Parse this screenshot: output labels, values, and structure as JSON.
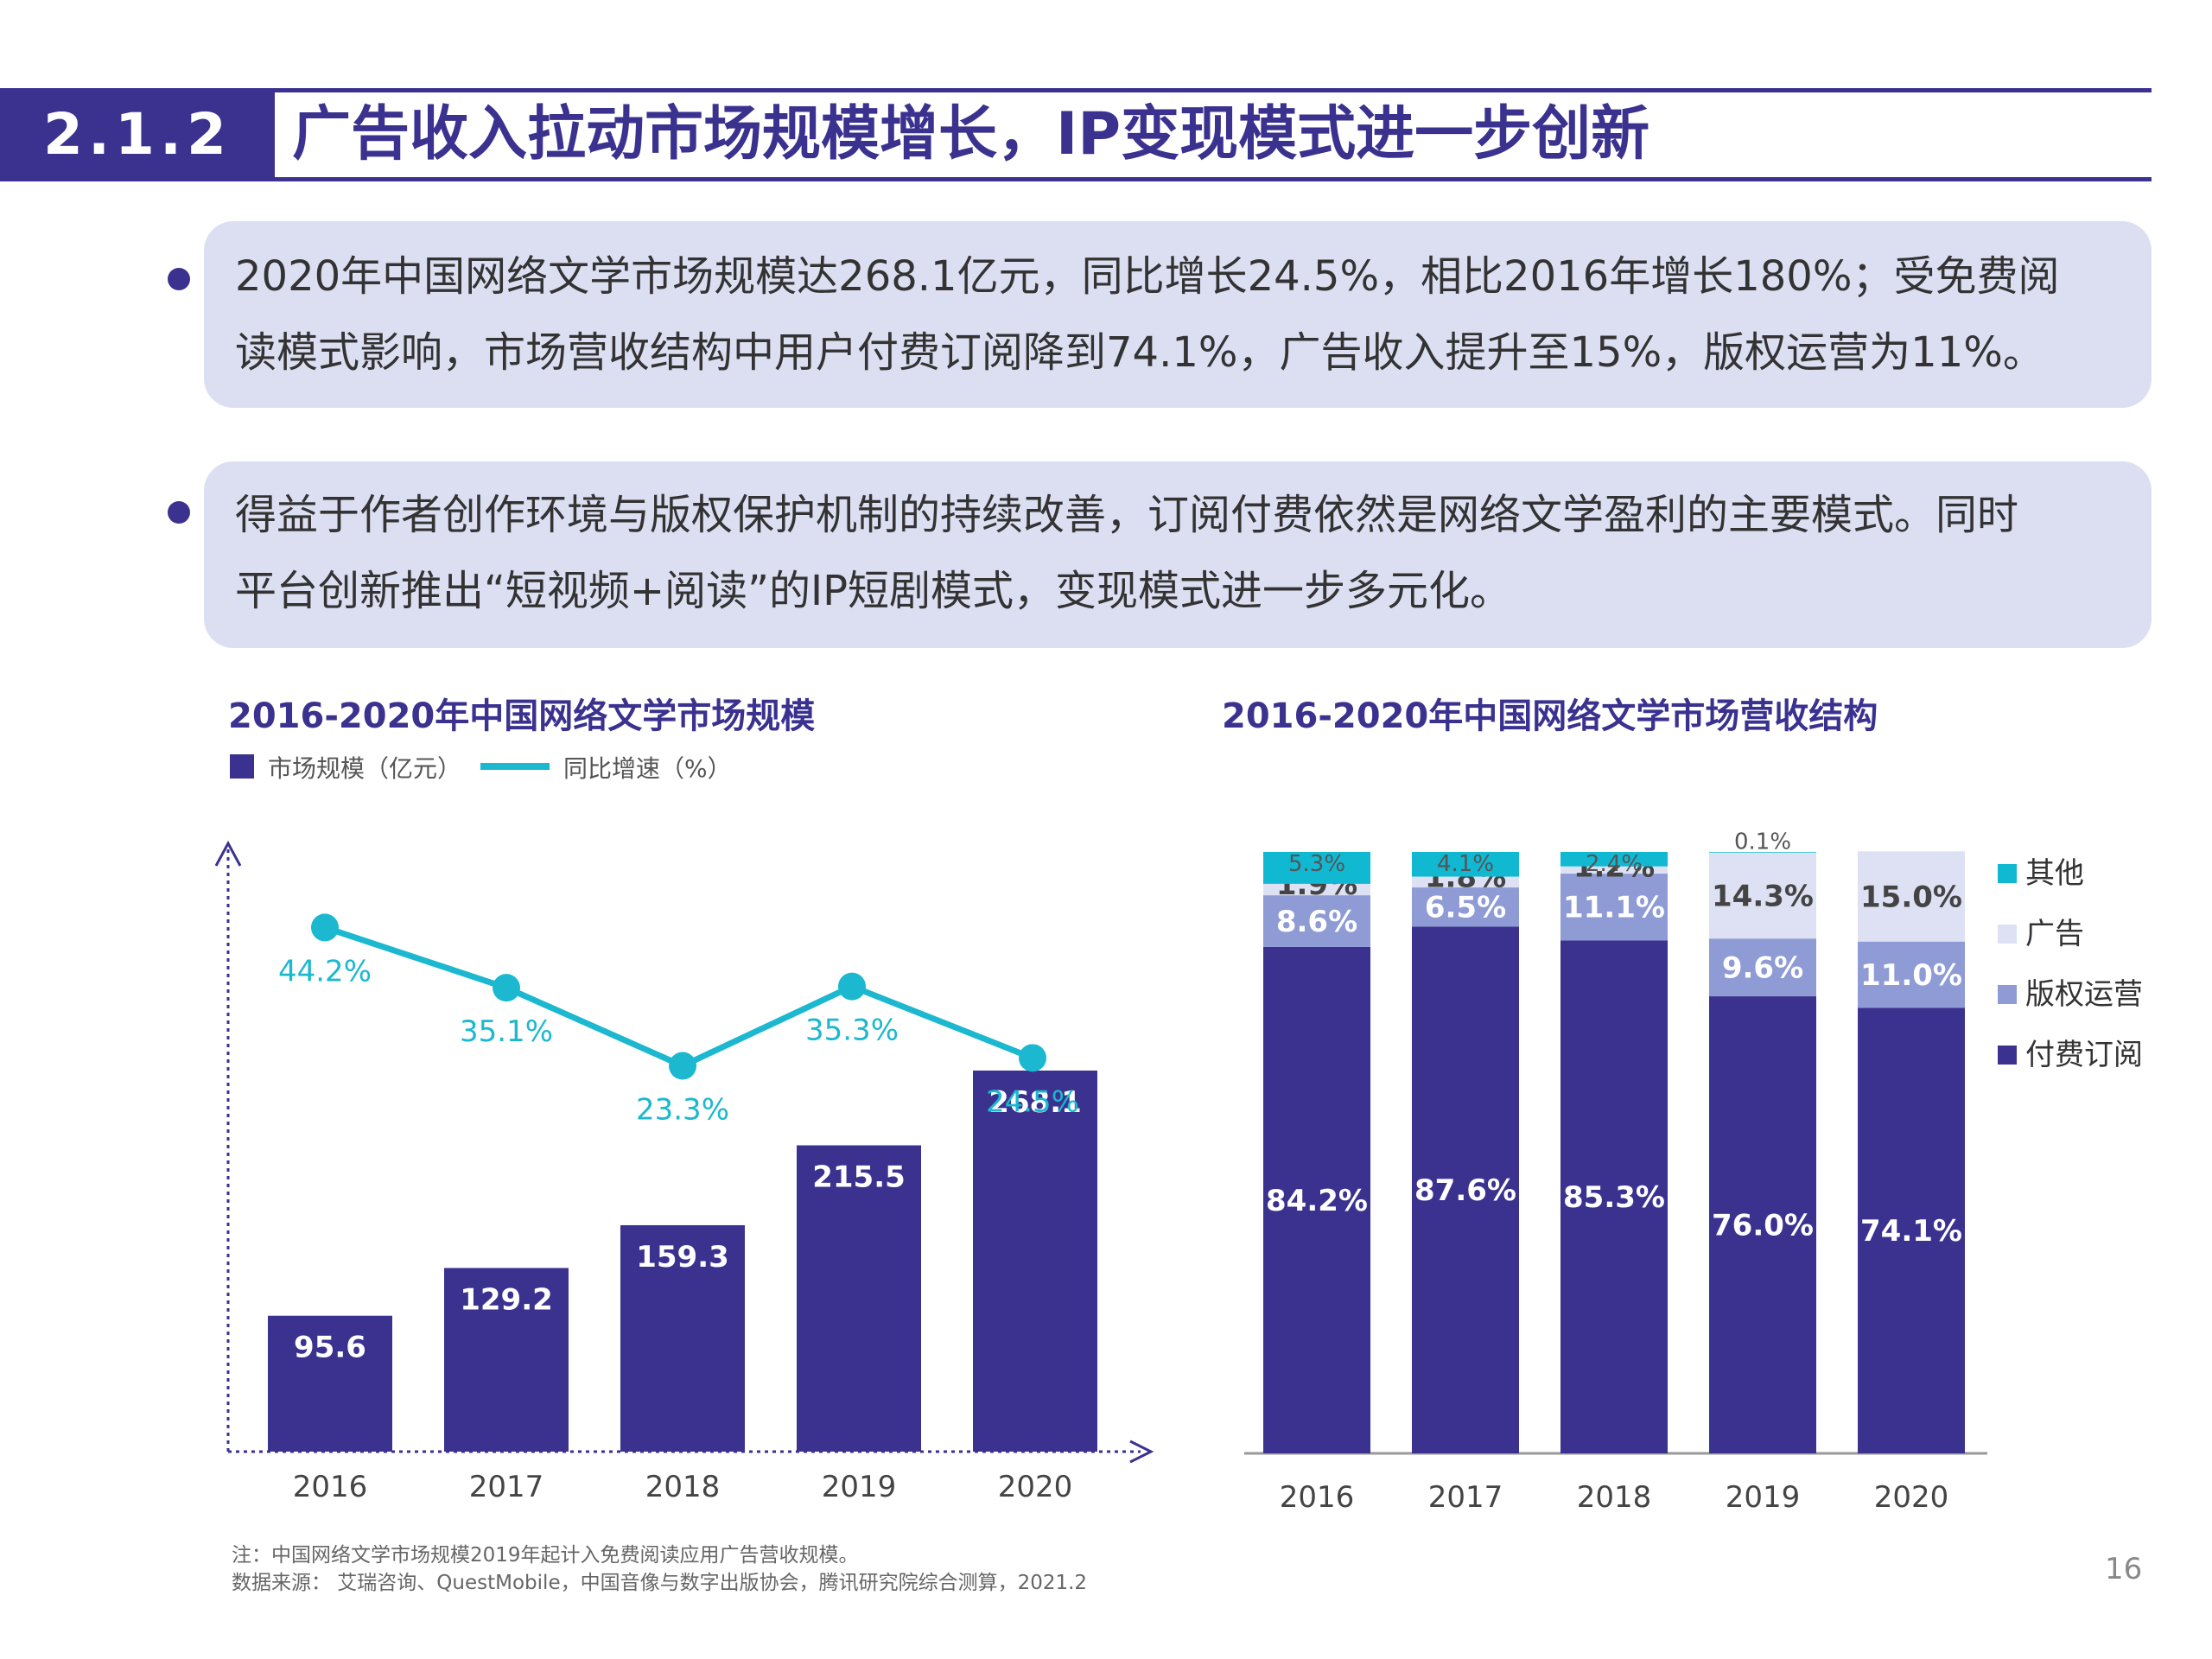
{
  "header": {
    "section_number": "2.1.2",
    "title": "广告收入拉动市场规模增长，IP变现模式进一步创新"
  },
  "bullets": [
    {
      "lines": [
        "2020年中国网络文学市场规模达268.1亿元，同比增长24.5%，相比2016年增长180%；受免费阅",
        "读模式影响，市场营收结构中用户付费订阅降到74.1%，广告收入提升至15%，版权运营为11%。"
      ]
    },
    {
      "lines": [
        "得益于作者创作环境与版权保护机制的持续改善，订阅付费依然是网络文学盈利的主要模式。同时",
        "平台创新推出“短视频+阅读”的IP短剧模式，变现模式进一步多元化。"
      ]
    }
  ],
  "colors": {
    "primary": "#3b3290",
    "teal": "#1bb8cf",
    "panel_bg": "#dcdff2",
    "ip_rights": "#8f9bd4",
    "ads": "#dde1f3",
    "other": "#10b8d2"
  },
  "chart_data": [
    {
      "type": "bar",
      "title": "2016-2020年中国网络文学市场规模",
      "categories": [
        "2016",
        "2017",
        "2018",
        "2019",
        "2020"
      ],
      "series": [
        {
          "name": "市场规模（亿元）",
          "type": "bar",
          "values": [
            95.6,
            129.2,
            159.3,
            215.5,
            268.1
          ]
        },
        {
          "name": "同比增速（%）",
          "type": "line",
          "values": [
            44.2,
            35.1,
            23.3,
            35.3,
            24.5
          ]
        }
      ],
      "bar_labels": [
        "95.6",
        "129.2",
        "159.3",
        "215.5",
        "268.1"
      ],
      "line_labels": [
        "44.2%",
        "35.1%",
        "23.3%",
        "35.3%",
        "24.5%"
      ],
      "legend_position": "top-left",
      "grid": false
    },
    {
      "type": "bar",
      "stacked": true,
      "title": "2016-2020年中国网络文学市场营收结构",
      "categories": [
        "2016",
        "2017",
        "2018",
        "2019",
        "2020"
      ],
      "series": [
        {
          "name": "付费订阅",
          "values": [
            84.2,
            87.6,
            85.3,
            76.0,
            74.1
          ],
          "labels": [
            "84.2%",
            "87.6%",
            "85.3%",
            "76.0%",
            "74.1%"
          ]
        },
        {
          "name": "版权运营",
          "values": [
            8.6,
            6.5,
            11.1,
            9.6,
            11.0
          ],
          "labels": [
            "8.6%",
            "6.5%",
            "11.1%",
            "9.6%",
            "11.0%"
          ]
        },
        {
          "name": "广告",
          "values": [
            1.9,
            1.8,
            1.2,
            14.3,
            15.0
          ],
          "labels": [
            "1.9%",
            "1.8%",
            "1.2%",
            "14.3%",
            "15.0%"
          ]
        },
        {
          "name": "其他",
          "values": [
            5.3,
            4.1,
            2.4,
            0.1,
            0
          ],
          "labels": [
            "5.3%",
            "4.1%",
            "2.4%",
            "0.1%",
            ""
          ]
        }
      ],
      "legend_order": [
        "其他",
        "广告",
        "版权运营",
        "付费订阅"
      ],
      "legend_position": "right",
      "ylim": [
        0,
        100
      ],
      "grid": false
    }
  ],
  "footnotes": {
    "note": "注：中国网络文学市场规模2019年起计入免费阅读应用广告营收规模。",
    "source": "数据来源： 艾瑞咨询、QuestMobile，中国音像与数字出版协会，腾讯研究院综合测算，2021.2"
  },
  "page_number": "16"
}
